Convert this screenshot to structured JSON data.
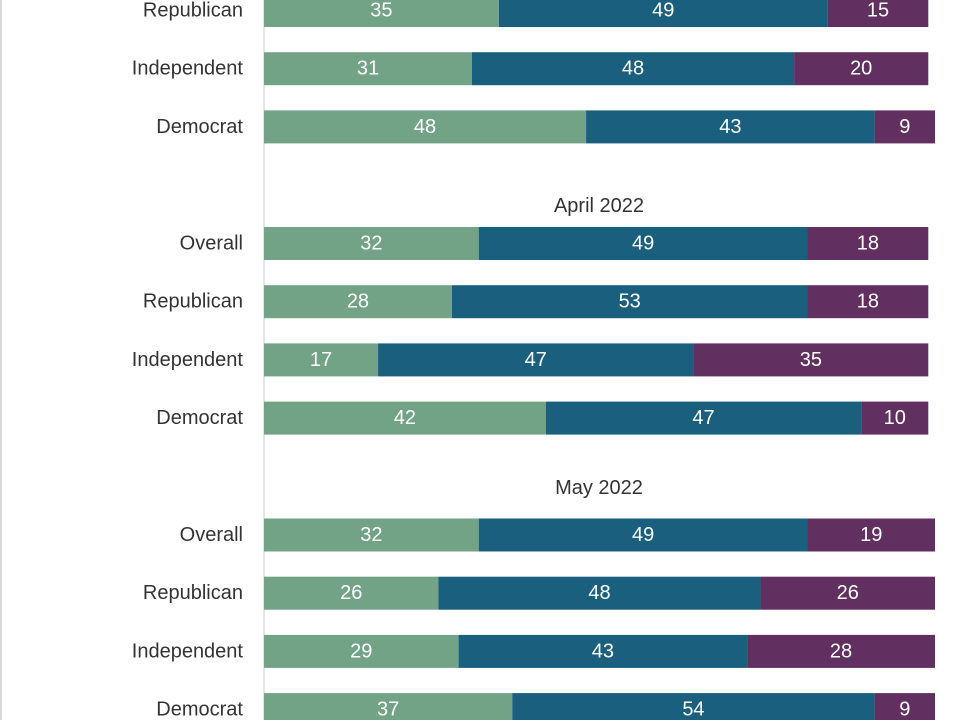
{
  "colors": {
    "segment_1": "#72A387",
    "segment_2": "#1A5F7E",
    "segment_3": "#612F60",
    "axis": "#cccccc",
    "edge": "#d9d9d9"
  },
  "chart_data": {
    "type": "bar",
    "orientation": "horizontal",
    "stacked": true,
    "xlim": [
      0,
      100
    ],
    "groups": [
      {
        "title": "",
        "categories": [
          "Republican",
          "Independent",
          "Democrat"
        ],
        "values": [
          [
            35,
            49,
            15
          ],
          [
            31,
            48,
            20
          ],
          [
            48,
            43,
            9
          ]
        ]
      },
      {
        "title": "April 2022",
        "categories": [
          "Overall",
          "Republican",
          "Independent",
          "Democrat"
        ],
        "values": [
          [
            32,
            49,
            18
          ],
          [
            28,
            53,
            18
          ],
          [
            17,
            47,
            35
          ],
          [
            42,
            47,
            10
          ]
        ]
      },
      {
        "title": "May 2022",
        "categories": [
          "Overall",
          "Republican",
          "Independent",
          "Democrat"
        ],
        "values": [
          [
            32,
            49,
            19
          ],
          [
            26,
            48,
            26
          ],
          [
            29,
            43,
            28
          ],
          [
            37,
            54,
            9
          ]
        ]
      }
    ]
  }
}
